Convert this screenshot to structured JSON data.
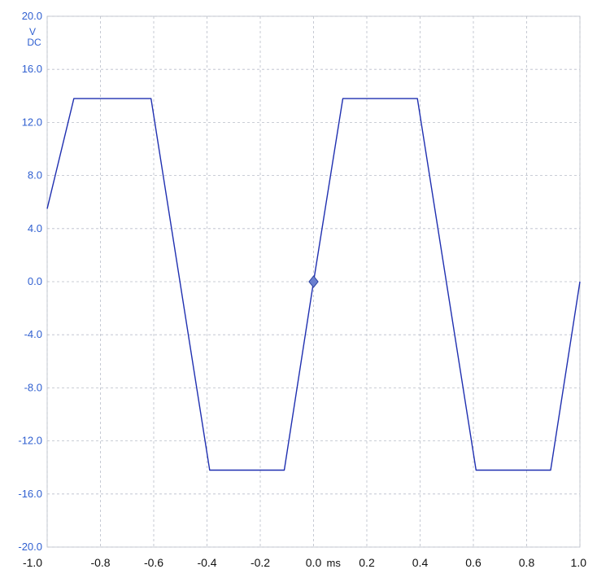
{
  "chart_data": {
    "type": "line",
    "title": "",
    "xlabel": "ms",
    "ylabel": "V",
    "ylabel_sub": "DC",
    "xlim": [
      -1.0,
      1.0
    ],
    "ylim": [
      -20.0,
      20.0
    ],
    "grid": true,
    "x_ticks": [
      {
        "value": -1.0,
        "label": "-1.0"
      },
      {
        "value": -0.8,
        "label": "-0.8"
      },
      {
        "value": -0.6,
        "label": "-0.6"
      },
      {
        "value": -0.4,
        "label": "-0.4"
      },
      {
        "value": -0.2,
        "label": "-0.2"
      },
      {
        "value": 0.0,
        "label": "0.0"
      },
      {
        "value": 0.2,
        "label": "0.2"
      },
      {
        "value": 0.4,
        "label": "0.4"
      },
      {
        "value": 0.6,
        "label": "0.6"
      },
      {
        "value": 0.8,
        "label": "0.8"
      },
      {
        "value": 1.0,
        "label": "1.0"
      }
    ],
    "y_ticks": [
      {
        "value": 20.0,
        "label": "20.0"
      },
      {
        "value": 16.0,
        "label": "16.0"
      },
      {
        "value": 12.0,
        "label": "12.0"
      },
      {
        "value": 8.0,
        "label": "8.0"
      },
      {
        "value": 4.0,
        "label": "4.0"
      },
      {
        "value": 0.0,
        "label": "0.0"
      },
      {
        "value": -4.0,
        "label": "-4.0"
      },
      {
        "value": -8.0,
        "label": "-8.0"
      },
      {
        "value": -12.0,
        "label": "-12.0"
      },
      {
        "value": -16.0,
        "label": "-16.0"
      },
      {
        "value": -20.0,
        "label": "-20.0"
      }
    ],
    "series": [
      {
        "color": "#1f2fb0",
        "x": [
          -1.0,
          -0.9,
          -0.61,
          -0.39,
          -0.11,
          0.0,
          0.11,
          0.39,
          0.61,
          0.89,
          1.0
        ],
        "y": [
          5.5,
          13.8,
          13.8,
          -14.2,
          -14.2,
          0.0,
          13.8,
          13.8,
          -14.2,
          -14.2,
          0.0
        ]
      }
    ],
    "trigger_marker": {
      "x": 0.0,
      "y": 0.0,
      "color": "#6a7fcf"
    }
  }
}
